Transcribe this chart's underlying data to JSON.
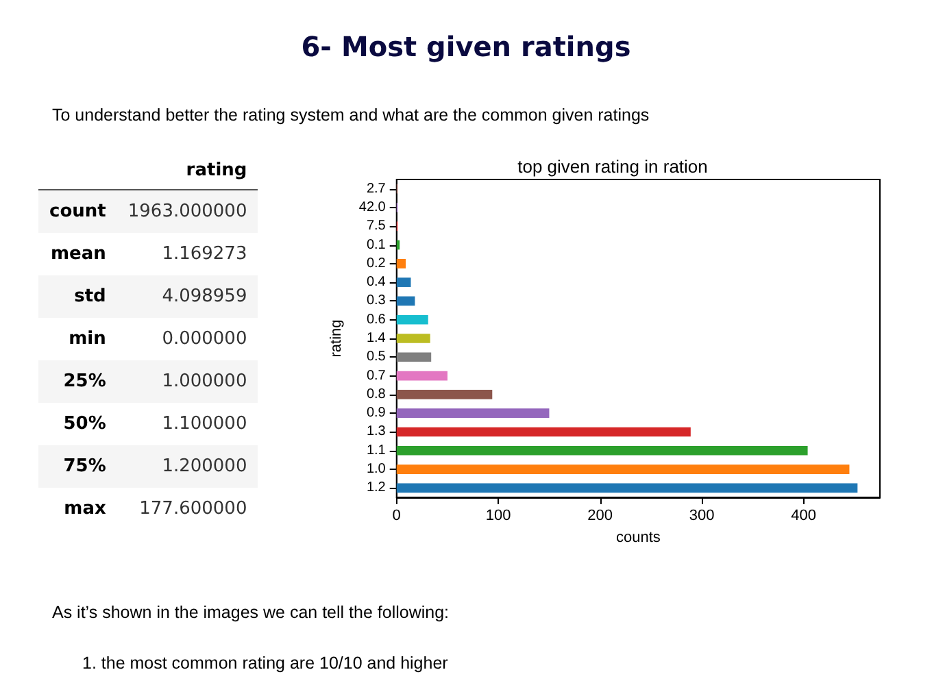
{
  "chart_data": [
    {
      "type": "other",
      "xlabel": "rating",
      "annotations": [
        "6- Most given ratings",
        "To understand better the rating system and what are the common given ratings",
        "As it’s shown in the images we can tell the following:",
        "1.   the most common rating are 10/10 and higher"
      ],
      "categories": [
        "count",
        "mean",
        "std",
        "min",
        "25%",
        "50%",
        "75%",
        "max"
      ],
      "value_labels": [
        "1963.000000",
        "1.169273",
        "4.098959",
        "0.000000",
        "1.000000",
        "1.100000",
        "1.200000",
        "177.600000"
      ]
    },
    {
      "type": "bar",
      "orientation": "horizontal",
      "title": "top given rating in ration",
      "xlabel": "counts",
      "ylabel": "rating",
      "categories": [
        "2.7",
        "42.0",
        "7.5",
        "0.1",
        "0.2",
        "0.4",
        "0.3",
        "0.6",
        "1.4",
        "0.5",
        "0.7",
        "0.8",
        "0.9",
        "1.3",
        "1.1",
        "1.0",
        "1.2"
      ],
      "values": [
        1,
        1,
        1,
        3,
        9,
        14,
        18,
        31,
        33,
        34,
        50,
        94,
        150,
        289,
        404,
        445,
        453
      ],
      "colors": [
        "#8c564b",
        "#9467bd",
        "#d62728",
        "#2ca02c",
        "#ff7f0e",
        "#1f77b4",
        "#1f77b4",
        "#17becf",
        "#bcbd22",
        "#7f7f7f",
        "#e377c2",
        "#8c564b",
        "#9467bd",
        "#d62728",
        "#2ca02c",
        "#ff7f0e",
        "#1f77b4"
      ],
      "xlim": [
        0,
        475
      ],
      "xticks": [
        0,
        100,
        200,
        300,
        400
      ],
      "grid": false
    }
  ]
}
